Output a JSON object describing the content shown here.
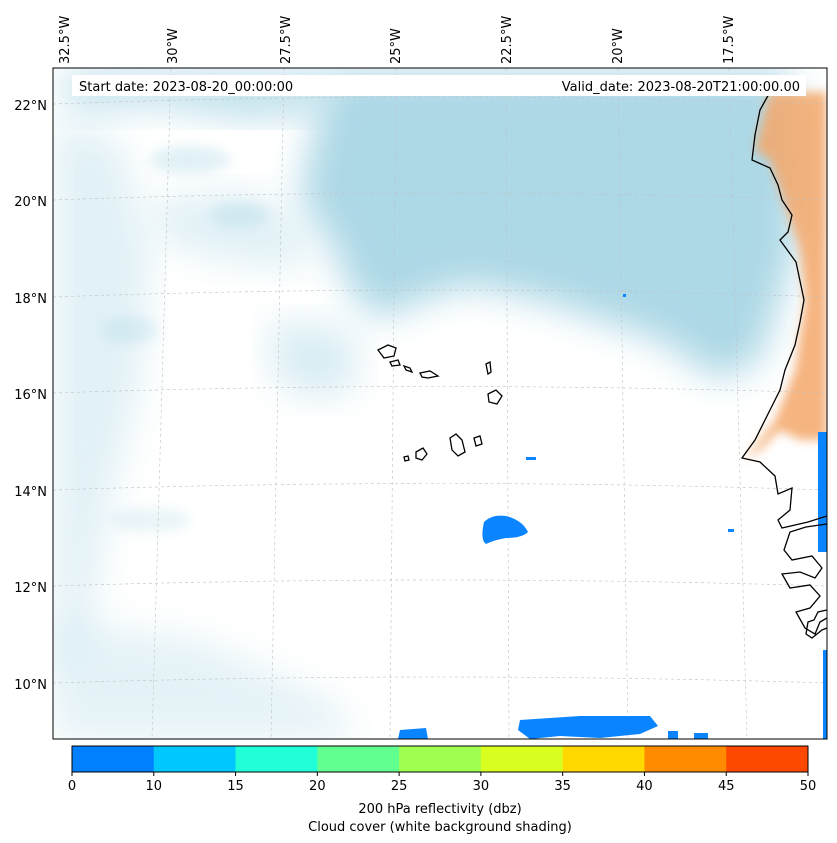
{
  "map": {
    "start_date": "Start date: 2023-08-20_00:00:00",
    "valid_date": "Valid_date: 2023-08-20T21:00:00.00",
    "lon_labels": [
      "32.5°W",
      "30°W",
      "27.5°W",
      "25°W",
      "22.5°W",
      "20°W",
      "17.5°W"
    ],
    "lat_labels": [
      "22°N",
      "20°N",
      "18°N",
      "16°N",
      "14°N",
      "12°N",
      "10°N"
    ],
    "colors": {
      "cloud": "#a9d6e5",
      "land": "#f4a76a",
      "reflectivity_low": "#0a84ff",
      "coastline": "#000000",
      "grid": "#c0c0c0"
    }
  },
  "colorbar": {
    "ticks": [
      "0",
      "10",
      "15",
      "20",
      "25",
      "30",
      "35",
      "40",
      "45",
      "50"
    ],
    "colors": [
      "#0080ff",
      "#00c8ff",
      "#20ffd8",
      "#60ff90",
      "#a0ff50",
      "#d8ff20",
      "#ffd800",
      "#ff8c00",
      "#ff4800"
    ],
    "label_line1": "200 hPa reflectivity (dbz)",
    "label_line2": "Cloud cover (white background shading)"
  }
}
